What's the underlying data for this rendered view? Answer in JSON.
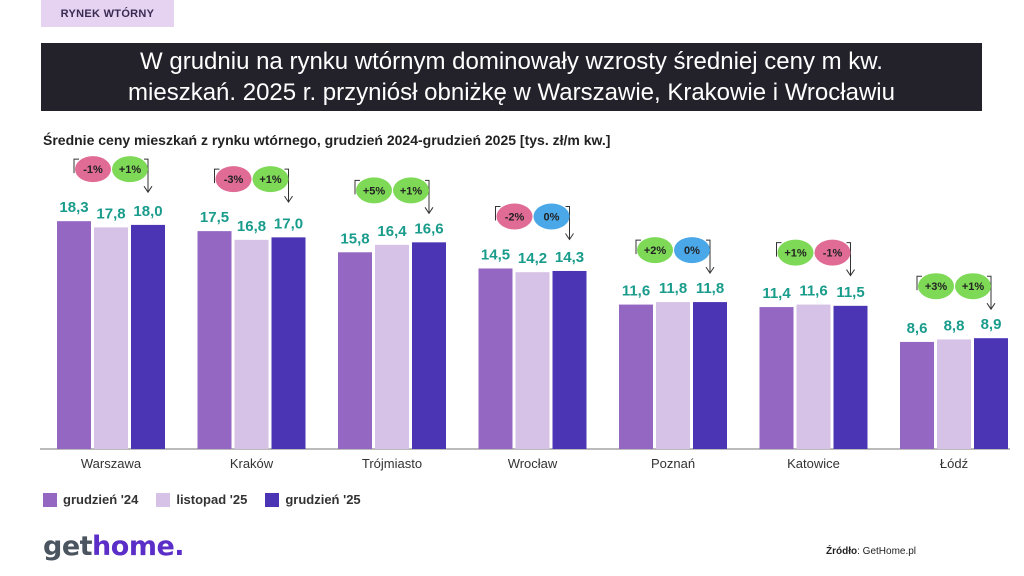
{
  "tag": "RYNEK WTÓRNY",
  "banner": {
    "line1": "W grudniu na rynku wtórnym dominowały wzrosty średniej ceny m kw.",
    "line2": "mieszkań. 2025 r. przyniósł obniżkę w Warszawie, Krakowie i Wrocławiu"
  },
  "subtitle": "Średnie ceny mieszkań z rynku wtórnego, grudzień 2024-grudzień 2025 [tys. zł/m kw.]",
  "chart_data": {
    "type": "bar",
    "title": "Średnie ceny mieszkań z rynku wtórnego, grudzień 2024-grudzień 2025 [tys. zł/m kw.]",
    "categories": [
      "Warszawa",
      "Kraków",
      "Trójmiasto",
      "Wrocław",
      "Poznań",
      "Katowice",
      "Łódź"
    ],
    "series": [
      {
        "name": "grudzień '24",
        "color": "#9467c3",
        "values": [
          18.3,
          17.5,
          15.8,
          14.5,
          11.6,
          11.4,
          8.6
        ],
        "labels": [
          "18,3",
          "17,5",
          "15,8",
          "14,5",
          "11,6",
          "11,4",
          "8,6"
        ]
      },
      {
        "name": "listopad '25",
        "color": "#d5c2e6",
        "values": [
          17.8,
          16.8,
          16.4,
          14.2,
          11.8,
          11.6,
          8.8
        ],
        "labels": [
          "17,8",
          "16,8",
          "16,4",
          "14,2",
          "11,8",
          "11,6",
          "8,8"
        ]
      },
      {
        "name": "grudzień '25",
        "color": "#4b35b5",
        "values": [
          18.0,
          17.0,
          16.6,
          14.3,
          11.8,
          11.5,
          8.9
        ],
        "labels": [
          "18,0",
          "17,0",
          "16,6",
          "14,3",
          "11,8",
          "11,5",
          "8,9"
        ]
      }
    ],
    "change_yoy": [
      "-1%",
      "-3%",
      "+5%",
      "-2%",
      "+2%",
      "+1%",
      "+3%"
    ],
    "change_mom": [
      "+1%",
      "+1%",
      "+1%",
      "0%",
      "0%",
      "-1%",
      "+1%"
    ],
    "change_colors": {
      "up": "#7ed957",
      "down": "#e06b95",
      "flat": "#4aa8e8"
    },
    "value_label_color": "#1a9c8c",
    "ylim": [
      0,
      20
    ],
    "grid": false,
    "legend": "bottom-left"
  },
  "footer": {
    "logo_part1": "get",
    "logo_part2": "home.",
    "source_label": "Źródło",
    "source_value": ": GetHome.pl"
  }
}
